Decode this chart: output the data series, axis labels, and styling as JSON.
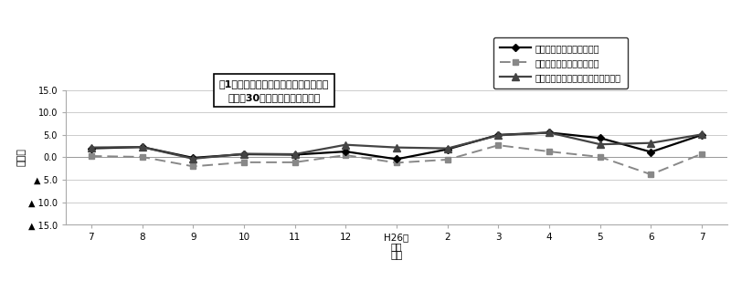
{
  "title_line1": "図1　賃金指数の推移（対前年同月比）",
  "title_line2": "－規模30人以上－　調査産業計",
  "ylabel": "（％）",
  "xlabel": "１月",
  "x_labels": [
    "7",
    "8",
    "9",
    "10",
    "11",
    "12",
    "H26年\n１月",
    "2",
    "3",
    "4",
    "5",
    "6",
    "7"
  ],
  "yticks": [
    15.0,
    10.0,
    5.0,
    0.0,
    -5.0,
    -10.0,
    -15.0
  ],
  "ytick_labels": [
    "15.0",
    "10.0",
    "5.0",
    "0.0",
    "▲ 5.0",
    "▲ 10.0",
    "▲ 15.0"
  ],
  "series1_name": "名目賃金（現金給与総額）",
  "series1_values": [
    2.0,
    2.3,
    -0.1,
    0.7,
    0.6,
    1.3,
    -0.4,
    1.8,
    5.0,
    5.5,
    4.3,
    1.2,
    5.0
  ],
  "series1_color": "#000000",
  "series2_name": "実質賃金（現金給与総額）",
  "series2_values": [
    0.3,
    0.1,
    -2.0,
    -1.1,
    -1.1,
    0.5,
    -1.2,
    -0.5,
    2.7,
    1.3,
    0.1,
    -3.8,
    0.8
  ],
  "series2_color": "#888888",
  "series3_name": "名目賃金（きまって支給する給与）",
  "series3_values": [
    2.2,
    2.3,
    -0.3,
    0.8,
    0.7,
    2.8,
    2.2,
    2.0,
    4.9,
    5.5,
    2.9,
    3.2,
    5.1
  ],
  "series3_color": "#444444",
  "ylim": [
    -15.0,
    15.0
  ],
  "background_color": "#ffffff",
  "grid_color": "#cccccc"
}
